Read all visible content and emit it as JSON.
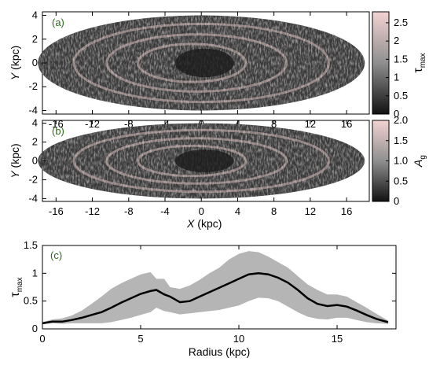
{
  "colors": {
    "map_high": "#f4d2d2",
    "map_mid": "#8f8f8f",
    "map_low": "#111111",
    "band": "#b5b5b5",
    "line": "#000000",
    "panel_label": "#2a6b1a"
  },
  "chart_data": [
    {
      "type": "heatmap",
      "panel_label": "(a)",
      "xlabel": "",
      "ylabel": "Y (kpc)",
      "colorbar_label": "τmax",
      "xlim": [
        -17.5,
        18.5
      ],
      "ylim": [
        -4.3,
        4.3
      ],
      "xticks": [
        "-16",
        "-12",
        "-8",
        "-4",
        "0",
        "4",
        "8",
        "12",
        "16"
      ],
      "xtick_values": [
        -16,
        -12,
        -8,
        -4,
        0,
        4,
        8,
        12,
        16
      ],
      "yticks": [
        "4",
        "2",
        "0",
        "-2",
        "-4"
      ],
      "ytick_values": [
        4,
        2,
        0,
        -2,
        -4
      ],
      "colorbar_range": [
        0,
        2.8
      ],
      "colorbar_ticks": [
        "2.5",
        "2",
        "1.5",
        "1",
        "0.5",
        "0"
      ],
      "colorbar_tick_values": [
        2.5,
        2,
        1.5,
        1,
        0.5,
        0
      ],
      "ellipse": {
        "center": [
          0,
          0
        ],
        "semi_major": 18,
        "semi_minor": 4
      }
    },
    {
      "type": "heatmap",
      "panel_label": "(b)",
      "xlabel": "X (kpc)",
      "ylabel": "Y (kpc)",
      "colorbar_label": "Ag",
      "xlim": [
        -17.5,
        18.5
      ],
      "ylim": [
        -4.3,
        4.3
      ],
      "xticks": [
        "-16",
        "-12",
        "-8",
        "-4",
        "0",
        "4",
        "8",
        "12",
        "16"
      ],
      "xtick_values": [
        -16,
        -12,
        -8,
        -4,
        0,
        4,
        8,
        12,
        16
      ],
      "yticks": [
        "4",
        "2",
        "0",
        "-2",
        "-4"
      ],
      "ytick_values": [
        4,
        2,
        0,
        -2,
        -4
      ],
      "colorbar_range": [
        0,
        2.0
      ],
      "colorbar_ticks": [
        "2.0",
        "1.5",
        "1.0",
        "0.5",
        "0"
      ],
      "colorbar_tick_values": [
        2.0,
        1.5,
        1.0,
        0.5,
        0
      ],
      "ellipse": {
        "center": [
          0,
          0
        ],
        "semi_major": 18,
        "semi_minor": 4
      }
    },
    {
      "type": "line",
      "panel_label": "(c)",
      "xlabel": "Radius (kpc)",
      "ylabel": "τmax",
      "xlim": [
        0,
        18
      ],
      "ylim": [
        0,
        1.5
      ],
      "xticks": [
        "0",
        "5",
        "10",
        "15"
      ],
      "xtick_values": [
        0,
        5,
        10,
        15
      ],
      "yticks": [
        "1.5",
        "1",
        "0.5",
        "0"
      ],
      "ytick_values": [
        1.5,
        1,
        0.5,
        0
      ],
      "x": [
        0,
        0.5,
        1,
        1.5,
        2,
        2.5,
        3,
        3.5,
        4,
        4.5,
        5,
        5.5,
        5.8,
        6.2,
        6.5,
        7,
        7.5,
        8,
        8.5,
        9,
        9.5,
        10,
        10.5,
        11,
        11.5,
        12,
        12.5,
        13,
        13.5,
        14,
        14.5,
        15,
        15.5,
        16,
        16.5,
        17,
        17.6
      ],
      "y": [
        0.1,
        0.13,
        0.13,
        0.16,
        0.2,
        0.25,
        0.3,
        0.38,
        0.47,
        0.55,
        0.63,
        0.68,
        0.7,
        0.62,
        0.58,
        0.48,
        0.5,
        0.58,
        0.66,
        0.74,
        0.82,
        0.9,
        0.98,
        1.0,
        0.98,
        0.92,
        0.83,
        0.7,
        0.55,
        0.45,
        0.41,
        0.43,
        0.4,
        0.33,
        0.25,
        0.18,
        0.12
      ],
      "band_upper": [
        0.12,
        0.17,
        0.19,
        0.24,
        0.33,
        0.45,
        0.58,
        0.72,
        0.82,
        0.9,
        0.98,
        1.02,
        0.9,
        0.9,
        0.75,
        0.72,
        0.78,
        0.88,
        1.0,
        1.1,
        1.25,
        1.35,
        1.4,
        1.38,
        1.3,
        1.2,
        1.1,
        0.95,
        0.8,
        0.7,
        0.62,
        0.62,
        0.58,
        0.48,
        0.38,
        0.27,
        0.15
      ],
      "band_lower": [
        0.08,
        0.1,
        0.09,
        0.1,
        0.1,
        0.1,
        0.1,
        0.12,
        0.16,
        0.2,
        0.25,
        0.3,
        0.38,
        0.32,
        0.3,
        0.26,
        0.28,
        0.3,
        0.32,
        0.34,
        0.38,
        0.42,
        0.5,
        0.56,
        0.55,
        0.5,
        0.4,
        0.3,
        0.22,
        0.18,
        0.17,
        0.2,
        0.2,
        0.16,
        0.12,
        0.1,
        0.09
      ]
    }
  ]
}
